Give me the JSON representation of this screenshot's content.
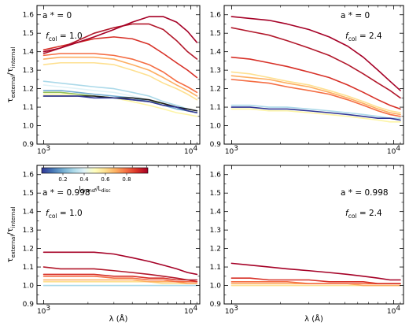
{
  "chart_data": {
    "type": "line",
    "ylabel": {
      "base": "τ",
      "sub1": "external",
      "mid": "/τ",
      "sub2": "internal"
    },
    "xlabel": "λ (Å)",
    "xscale": "log",
    "xlim": [
      900,
      11500
    ],
    "ylim": [
      0.9,
      1.65
    ],
    "yticks": [
      "0.9",
      "1.0",
      "1.1",
      "1.2",
      "1.3",
      "1.4",
      "1.5",
      "1.6"
    ],
    "xticks": [
      {
        "base": "10",
        "exp": "3",
        "value": 1000
      },
      {
        "base": "10",
        "exp": "4",
        "value": 10000
      }
    ],
    "colorbar": {
      "label_base": "L",
      "label_sub1": "transf",
      "label_mid": "/L",
      "label_sub2": "disc",
      "ticks": [
        "0.2",
        "0.4",
        "0.6",
        "0.8"
      ],
      "tick_values": [
        0.2,
        0.4,
        0.6,
        0.8
      ],
      "range": [
        0.0,
        1.0
      ],
      "colormap": [
        "#313695",
        "#4575b4",
        "#74add1",
        "#abd9e9",
        "#e0f3f8",
        "#ffffbf",
        "#fee090",
        "#fdae61",
        "#f46d43",
        "#d73027",
        "#a50026"
      ]
    },
    "x": [
      1000,
      1300,
      1700,
      2200,
      3000,
      4000,
      5200,
      6500,
      8000,
      9500,
      11000
    ],
    "panels": [
      {
        "spin_label": "a * = 0",
        "fcol_base": "f",
        "fcol_sub": "col",
        "fcol_value": "= 1.0",
        "series": [
          {
            "color": "#fdf5a6",
            "values": [
              1.17,
              1.17,
              1.17,
              1.16,
              1.15,
              1.13,
              1.11,
              1.09,
              1.07,
              1.06,
              1.05
            ]
          },
          {
            "color": "#abd9e9",
            "values": [
              1.24,
              1.23,
              1.22,
              1.21,
              1.2,
              1.18,
              1.16,
              1.13,
              1.11,
              1.09,
              1.08
            ]
          },
          {
            "color": "#e0f3f8",
            "values": [
              1.22,
              1.21,
              1.2,
              1.19,
              1.18,
              1.16,
              1.14,
              1.12,
              1.1,
              1.08,
              1.07
            ]
          },
          {
            "color": "#74add1",
            "values": [
              1.19,
              1.19,
              1.18,
              1.17,
              1.16,
              1.15,
              1.13,
              1.11,
              1.09,
              1.08,
              1.07
            ]
          },
          {
            "color": "#91bf5a",
            "values": [
              1.18,
              1.18,
              1.17,
              1.16,
              1.15,
              1.14,
              1.13,
              1.12,
              1.1,
              1.08,
              1.07
            ]
          },
          {
            "color": "#202020",
            "values": [
              1.16,
              1.16,
              1.16,
              1.16,
              1.15,
              1.15,
              1.14,
              1.12,
              1.1,
              1.09,
              1.08
            ]
          },
          {
            "color": "#313695",
            "values": [
              1.16,
              1.16,
              1.16,
              1.15,
              1.15,
              1.14,
              1.13,
              1.11,
              1.1,
              1.08,
              1.07
            ]
          },
          {
            "color": "#fee090",
            "values": [
              1.33,
              1.34,
              1.34,
              1.34,
              1.33,
              1.3,
              1.27,
              1.23,
              1.2,
              1.17,
              1.14
            ]
          },
          {
            "color": "#fdae61",
            "values": [
              1.36,
              1.37,
              1.37,
              1.37,
              1.36,
              1.33,
              1.3,
              1.26,
              1.22,
              1.19,
              1.16
            ]
          },
          {
            "color": "#f46d43",
            "values": [
              1.38,
              1.39,
              1.39,
              1.39,
              1.38,
              1.36,
              1.33,
              1.29,
              1.24,
              1.21,
              1.18
            ]
          },
          {
            "color": "#d73027",
            "values": [
              1.41,
              1.43,
              1.45,
              1.47,
              1.48,
              1.47,
              1.44,
              1.39,
              1.34,
              1.3,
              1.26
            ]
          },
          {
            "color": "#b2182b",
            "values": [
              1.39,
              1.42,
              1.46,
              1.5,
              1.53,
              1.55,
              1.55,
              1.52,
              1.46,
              1.4,
              1.36
            ]
          },
          {
            "color": "#a50026",
            "values": [
              1.4,
              1.42,
              1.45,
              1.48,
              1.52,
              1.56,
              1.59,
              1.59,
              1.56,
              1.51,
              1.45
            ]
          }
        ]
      },
      {
        "spin_label": "a * = 0",
        "fcol_base": "f",
        "fcol_sub": "col",
        "fcol_value": "= 2.4",
        "series": [
          {
            "color": "#fdf5a6",
            "values": [
              1.09,
              1.09,
              1.08,
              1.08,
              1.07,
              1.06,
              1.05,
              1.04,
              1.03,
              1.02,
              1.02
            ]
          },
          {
            "color": "#abd9e9",
            "values": [
              1.11,
              1.11,
              1.1,
              1.1,
              1.09,
              1.08,
              1.07,
              1.06,
              1.05,
              1.04,
              1.04
            ]
          },
          {
            "color": "#313695",
            "values": [
              1.1,
              1.1,
              1.09,
              1.09,
              1.08,
              1.07,
              1.06,
              1.05,
              1.04,
              1.04,
              1.03
            ]
          },
          {
            "color": "#fee090",
            "values": [
              1.29,
              1.28,
              1.26,
              1.24,
              1.22,
              1.19,
              1.16,
              1.13,
              1.1,
              1.08,
              1.07
            ]
          },
          {
            "color": "#fdae61",
            "values": [
              1.27,
              1.26,
              1.25,
              1.23,
              1.21,
              1.18,
              1.15,
              1.12,
              1.09,
              1.07,
              1.06
            ]
          },
          {
            "color": "#f46d43",
            "values": [
              1.25,
              1.24,
              1.23,
              1.21,
              1.19,
              1.17,
              1.14,
              1.11,
              1.08,
              1.06,
              1.05
            ]
          },
          {
            "color": "#d73027",
            "values": [
              1.37,
              1.36,
              1.34,
              1.32,
              1.29,
              1.26,
              1.22,
              1.18,
              1.14,
              1.11,
              1.09
            ]
          },
          {
            "color": "#b2182b",
            "values": [
              1.53,
              1.51,
              1.49,
              1.46,
              1.42,
              1.38,
              1.33,
              1.28,
              1.23,
              1.19,
              1.15
            ]
          },
          {
            "color": "#a50026",
            "values": [
              1.59,
              1.58,
              1.57,
              1.55,
              1.52,
              1.48,
              1.43,
              1.37,
              1.3,
              1.24,
              1.19
            ]
          }
        ]
      },
      {
        "spin_label": "a * = 0.998",
        "fcol_base": "f",
        "fcol_sub": "col",
        "fcol_value": "= 1.0",
        "series": [
          {
            "color": "#abd9e9",
            "values": [
              1.0,
              1.0,
              1.0,
              1.0,
              1.0,
              1.0,
              1.0,
              1.0,
              1.0,
              1.0,
              1.0
            ]
          },
          {
            "color": "#fee090",
            "values": [
              1.02,
              1.02,
              1.02,
              1.02,
              1.02,
              1.02,
              1.02,
              1.01,
              1.01,
              1.01,
              1.01
            ]
          },
          {
            "color": "#fdae61",
            "values": [
              1.03,
              1.03,
              1.03,
              1.03,
              1.03,
              1.03,
              1.02,
              1.02,
              1.02,
              1.01,
              1.01
            ]
          },
          {
            "color": "#f46d43",
            "values": [
              1.05,
              1.05,
              1.05,
              1.05,
              1.04,
              1.04,
              1.03,
              1.03,
              1.02,
              1.02,
              1.02
            ]
          },
          {
            "color": "#d73027",
            "values": [
              1.06,
              1.06,
              1.06,
              1.06,
              1.05,
              1.05,
              1.04,
              1.04,
              1.03,
              1.03,
              1.02
            ]
          },
          {
            "color": "#b2182b",
            "values": [
              1.1,
              1.09,
              1.09,
              1.09,
              1.08,
              1.07,
              1.06,
              1.05,
              1.04,
              1.03,
              1.03
            ]
          },
          {
            "color": "#a50026",
            "values": [
              1.18,
              1.18,
              1.18,
              1.18,
              1.17,
              1.15,
              1.13,
              1.11,
              1.09,
              1.07,
              1.06
            ]
          }
        ]
      },
      {
        "spin_label": "a * = 0.998",
        "fcol_base": "f",
        "fcol_sub": "col",
        "fcol_value": "= 2.4",
        "series": [
          {
            "color": "#fee090",
            "values": [
              1.0,
              1.0,
              1.0,
              1.0,
              1.0,
              1.0,
              1.0,
              1.0,
              1.0,
              1.0,
              1.0
            ]
          },
          {
            "color": "#fdae61",
            "values": [
              1.01,
              1.01,
              1.01,
              1.01,
              1.01,
              1.01,
              1.01,
              1.0,
              1.0,
              1.0,
              1.0
            ]
          },
          {
            "color": "#f46d43",
            "values": [
              1.02,
              1.02,
              1.02,
              1.02,
              1.01,
              1.01,
              1.01,
              1.01,
              1.01,
              1.01,
              1.01
            ]
          },
          {
            "color": "#d73027",
            "values": [
              1.04,
              1.04,
              1.03,
              1.03,
              1.03,
              1.02,
              1.02,
              1.02,
              1.01,
              1.01,
              1.01
            ]
          },
          {
            "color": "#a50026",
            "values": [
              1.12,
              1.11,
              1.1,
              1.09,
              1.08,
              1.07,
              1.06,
              1.05,
              1.04,
              1.03,
              1.03
            ]
          }
        ]
      }
    ]
  }
}
